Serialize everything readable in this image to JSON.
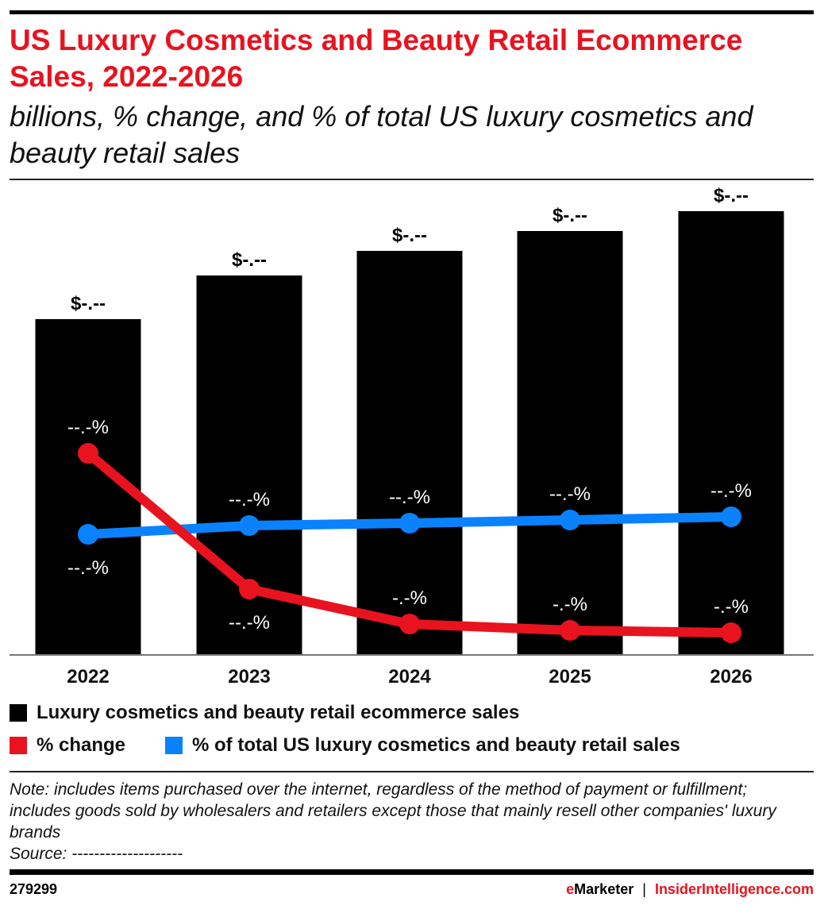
{
  "header": {
    "title": "US Luxury Cosmetics and Beauty Retail Ecommerce Sales, 2022-2026",
    "subtitle": "billions, % change, and % of total US luxury cosmetics and beauty retail sales"
  },
  "chart_data": {
    "type": "bar",
    "title": "US Luxury Cosmetics and Beauty Retail Ecommerce Sales, 2022-2026",
    "subtitle": "billions, % change, and % of total US luxury cosmetics and beauty retail sales",
    "categories": [
      "2022",
      "2023",
      "2024",
      "2025",
      "2026"
    ],
    "grid": false,
    "legend_placement": "bottom",
    "series": [
      {
        "name": "Luxury cosmetics and beauty retail ecommerce sales",
        "type": "bar",
        "color": "#000000",
        "labels": [
          "$-.--",
          "$-.--",
          "$-.--",
          "$-.--",
          "$-.--"
        ]
      },
      {
        "name": "% change",
        "type": "line",
        "color": "#e8131f",
        "labels": [
          "--.-%",
          "--.-%",
          "-.-%",
          "-.-%",
          "-.-%"
        ]
      },
      {
        "name": "% of total US luxury cosmetics and beauty retail sales",
        "type": "line",
        "color": "#0a82ff",
        "labels": [
          "--.-%",
          "--.-%",
          "--.-%",
          "--.-%",
          "--.-%"
        ]
      }
    ]
  },
  "legend": {
    "items": [
      {
        "label": "Luxury cosmetics and beauty retail ecommerce sales",
        "color": "#000000"
      },
      {
        "label": "% change",
        "color": "#e8131f"
      },
      {
        "label": "% of total US luxury cosmetics and beauty retail sales",
        "color": "#0a82ff"
      }
    ]
  },
  "footer": {
    "note": "Note: includes items purchased over the internet, regardless of the method of payment or fulfillment; includes goods sold by wholesalers and retailers except those that mainly resell other companies' luxury brands",
    "source": "Source: --------------------",
    "chart_id": "279299",
    "brand_e": "e",
    "brand_marketer": "Marketer",
    "brand_sep": "|",
    "brand_site": "InsiderIntelligence.com"
  }
}
